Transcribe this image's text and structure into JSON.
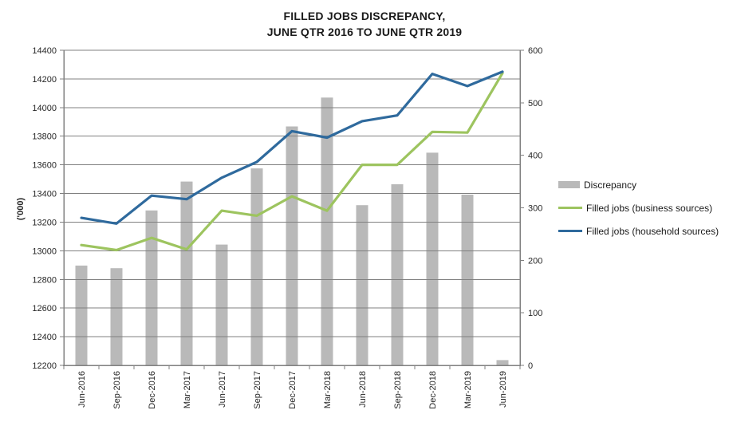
{
  "title": {
    "line1": "FILLED JOBS DISCREPANCY,",
    "line2": "JUNE QTR 2016 TO JUNE QTR 2019"
  },
  "chart_data": {
    "type": "bar-line-combo",
    "categories": [
      "Jun-2016",
      "Sep-2016",
      "Dec-2016",
      "Mar-2017",
      "Jun-2017",
      "Sep-2017",
      "Dec-2017",
      "Mar-2018",
      "Jun-2018",
      "Sep-2018",
      "Dec-2018",
      "Mar-2019",
      "Jun-2019"
    ],
    "series": [
      {
        "name": "Discrepancy",
        "type": "bar",
        "axis": "right",
        "color": "#b9b9b9",
        "values": [
          190,
          185,
          295,
          350,
          230,
          375,
          455,
          510,
          305,
          345,
          405,
          325,
          10
        ]
      },
      {
        "name": "Filled jobs (business sources)",
        "type": "line",
        "axis": "left",
        "color": "#9dc45f",
        "values": [
          13040,
          13005,
          13090,
          13010,
          13280,
          13245,
          13380,
          13280,
          13600,
          13600,
          13830,
          13825,
          14240
        ]
      },
      {
        "name": "Filled jobs (household sources)",
        "type": "line",
        "axis": "left",
        "color": "#2f6a9d",
        "values": [
          13230,
          13190,
          13385,
          13360,
          13510,
          13620,
          13835,
          13790,
          13905,
          13945,
          14235,
          14150,
          14250
        ]
      }
    ],
    "left_axis": {
      "title": "('000)",
      "min": 12200,
      "max": 14400,
      "step": 200
    },
    "right_axis": {
      "min": 0,
      "max": 600,
      "step": 100
    },
    "grid": true,
    "legend_position": "right",
    "colors": {
      "gridline": "#808080",
      "axis_line": "#808080",
      "tick_label": "#262626"
    }
  }
}
